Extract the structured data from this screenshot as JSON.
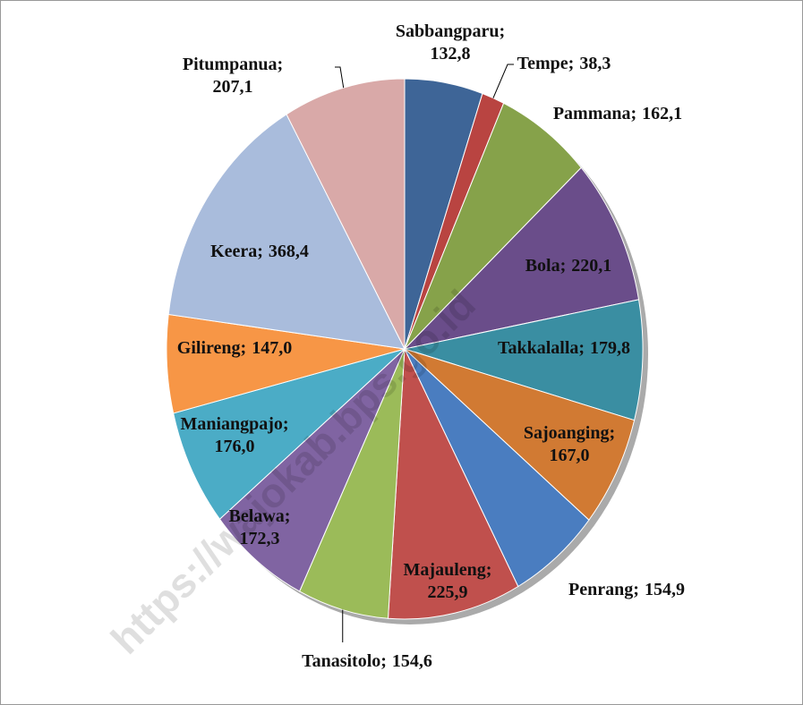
{
  "chart_data": {
    "type": "pie",
    "watermark": "https://wajokab.bps.go.id",
    "categories": [
      "Sabbangparu",
      "Tempe",
      "Pammana",
      "Bola",
      "Takkalalla",
      "Sajoanging",
      "Penrang",
      "Majauleng",
      "Tanasitolo",
      "Belawa",
      "Maniangpajo",
      "Gilireng",
      "Keera",
      "Pitumpanua"
    ],
    "values": [
      132.8,
      38.3,
      162.1,
      220.1,
      179.8,
      167.0,
      154.9,
      225.9,
      154.6,
      172.3,
      176.0,
      147.0,
      368.4,
      207.1
    ],
    "value_labels": [
      "132,8",
      "38,3",
      "162,1",
      "220,1",
      "179,8",
      "167,0",
      "154,9",
      "225,9",
      "154,6",
      "172,3",
      "176,0",
      "147,0",
      "368,4",
      "207,1"
    ],
    "colors": [
      "#3e6597",
      "#b94441",
      "#86a24a",
      "#6a4d8a",
      "#3a8ea2",
      "#d17a33",
      "#4a7dc0",
      "#c0504d",
      "#9bbb59",
      "#8064a2",
      "#4bacc6",
      "#f79646",
      "#a9bcdc",
      "#d9a9a8"
    ]
  }
}
